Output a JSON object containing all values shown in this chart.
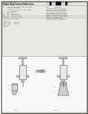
{
  "bg_color": "#e8e8e4",
  "white": "#ffffff",
  "border_color": "#444444",
  "barcode_color": "#111111",
  "text_dark": "#111111",
  "text_mid": "#333333",
  "text_light": "#555555",
  "diagram_bg": "#f0f0f0",
  "syringe_fill": "#e0e0e0",
  "syringe_edge": "#444444",
  "cone_fill": "#d8d8d8",
  "arrow_fill": "#cccccc",
  "arrow_edge": "#888888",
  "tiny_fs": 1.6,
  "small_fs": 1.9
}
